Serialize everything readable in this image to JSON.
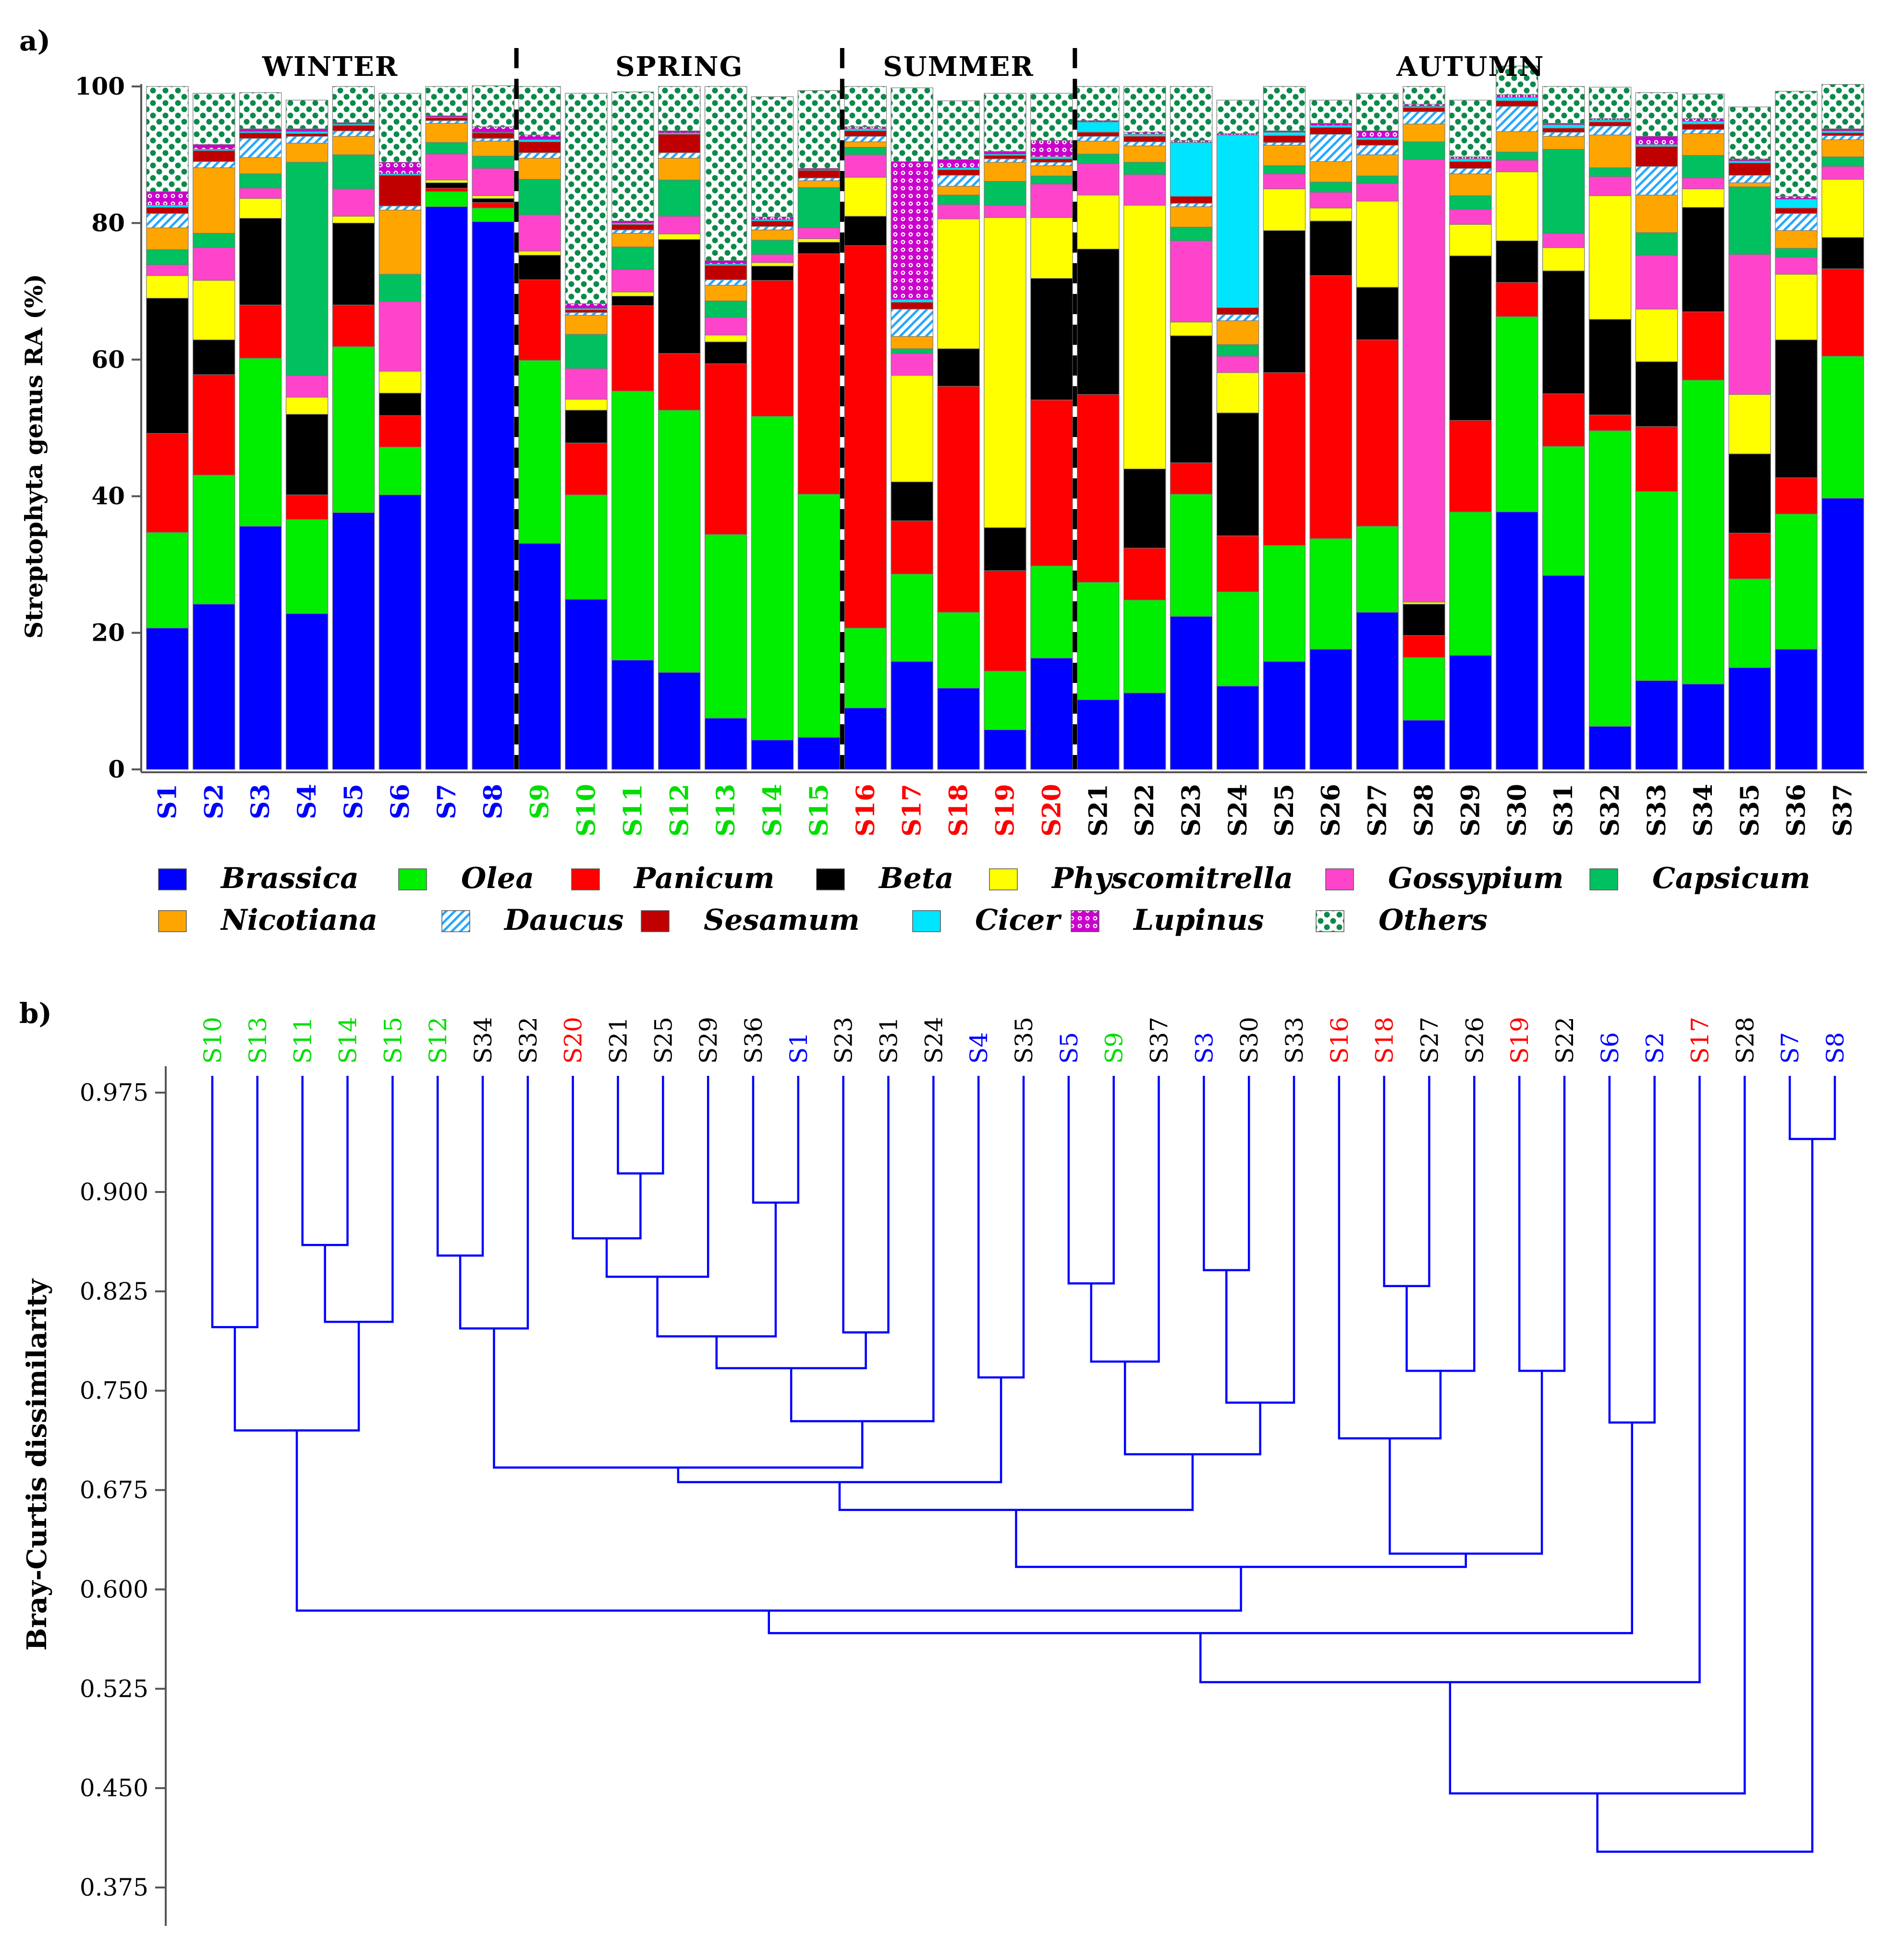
{
  "figure": {
    "panel_a_label": "a)",
    "panel_b_label": "b)"
  },
  "chart_data": [
    {
      "type": "bar",
      "stacked": true,
      "ylabel": "Streptophyta genus RA (%)",
      "ylim": [
        0,
        100
      ],
      "yticks": [
        0,
        20,
        40,
        60,
        80,
        100
      ],
      "seasons": [
        {
          "name": "WINTER",
          "samples": [
            "S1",
            "S2",
            "S3",
            "S4",
            "S5",
            "S6",
            "S7",
            "S8"
          ],
          "color": "#0000ff"
        },
        {
          "name": "SPRING",
          "samples": [
            "S9",
            "S10",
            "S11",
            "S12",
            "S13",
            "S14",
            "S15"
          ],
          "color": "#00dd00"
        },
        {
          "name": "SUMMER",
          "samples": [
            "S16",
            "S17",
            "S18",
            "S19",
            "S20"
          ],
          "color": "#ff0000"
        },
        {
          "name": "AUTUMN",
          "samples": [
            "S21",
            "S22",
            "S23",
            "S24",
            "S25",
            "S26",
            "S27",
            "S28",
            "S29",
            "S30",
            "S31",
            "S32",
            "S33",
            "S34",
            "S35",
            "S36",
            "S37"
          ],
          "color": "#000000"
        }
      ],
      "categories": [
        "S1",
        "S2",
        "S3",
        "S4",
        "S5",
        "S6",
        "S7",
        "S8",
        "S9",
        "S10",
        "S11",
        "S12",
        "S13",
        "S14",
        "S15",
        "S16",
        "S17",
        "S18",
        "S19",
        "S20",
        "S21",
        "S22",
        "S23",
        "S24",
        "S25",
        "S26",
        "S27",
        "S28",
        "S29",
        "S30",
        "S31",
        "S32",
        "S33",
        "S34",
        "S35",
        "S36",
        "S37"
      ],
      "series": [
        {
          "name": "Brassica",
          "color": "#0000ff",
          "pattern": "solid",
          "values": [
            20.7,
            24.2,
            35.6,
            22.8,
            37.6,
            40.2,
            82.4,
            80.2,
            33.1,
            24.9,
            16.0,
            14.2,
            7.5,
            4.3,
            4.7,
            9.0,
            15.8,
            11.9,
            5.8,
            16.3,
            10.2,
            11.2,
            22.4,
            12.2,
            15.8,
            17.6,
            23.0,
            7.2,
            16.7,
            37.7,
            28.4,
            6.3,
            13.0,
            12.5,
            14.9,
            17.6,
            39.7
          ]
        },
        {
          "name": "Olea",
          "color": "#00ee00",
          "pattern": "solid",
          "values": [
            14.0,
            18.9,
            24.6,
            13.8,
            24.3,
            7.0,
            2.2,
            2.0,
            26.8,
            15.3,
            39.4,
            38.4,
            26.9,
            47.4,
            35.6,
            11.7,
            12.8,
            11.1,
            8.6,
            13.5,
            17.2,
            13.6,
            17.9,
            13.8,
            17.0,
            16.2,
            12.6,
            9.2,
            21.0,
            28.6,
            18.9,
            43.3,
            27.7,
            44.5,
            13.0,
            19.8,
            20.8
          ]
        },
        {
          "name": "Panicum",
          "color": "#ff0000",
          "pattern": "solid",
          "values": [
            14.5,
            14.7,
            7.8,
            3.6,
            6.1,
            4.6,
            0.5,
            0.8,
            11.8,
            7.6,
            12.5,
            8.3,
            25.0,
            19.9,
            35.2,
            56.0,
            7.8,
            33.1,
            14.7,
            24.3,
            27.5,
            7.6,
            4.6,
            8.2,
            25.3,
            38.5,
            27.3,
            3.2,
            13.4,
            5.0,
            7.7,
            2.3,
            9.5,
            10.0,
            6.7,
            5.3,
            12.8
          ]
        },
        {
          "name": "Beta",
          "color": "#000000",
          "pattern": "solid",
          "values": [
            19.8,
            5.1,
            12.7,
            11.8,
            12.0,
            3.3,
            0.8,
            0.6,
            3.6,
            4.8,
            1.4,
            16.7,
            3.2,
            2.1,
            1.7,
            4.3,
            5.7,
            5.5,
            6.3,
            17.8,
            21.3,
            11.6,
            18.6,
            18.0,
            20.8,
            8.0,
            7.7,
            4.6,
            24.1,
            6.1,
            18.0,
            14.0,
            9.5,
            15.3,
            11.6,
            20.2,
            4.6
          ]
        },
        {
          "name": "Physcomitrella",
          "color": "#ffff00",
          "pattern": "solid",
          "values": [
            3.3,
            8.7,
            2.9,
            2.5,
            1.0,
            3.2,
            0.4,
            0.4,
            0.6,
            1.6,
            0.6,
            0.8,
            1.0,
            0.5,
            0.5,
            5.7,
            15.6,
            19.0,
            45.4,
            8.9,
            7.9,
            38.6,
            2.0,
            5.9,
            6.1,
            1.9,
            12.6,
            0.3,
            4.6,
            10.1,
            3.4,
            18.1,
            7.7,
            2.7,
            8.7,
            9.6,
            8.5
          ]
        },
        {
          "name": "Gossypium",
          "color": "#ff44cc",
          "pattern": "solid",
          "values": [
            1.6,
            4.8,
            1.5,
            3.2,
            4.0,
            10.2,
            3.8,
            4.0,
            5.3,
            4.5,
            3.3,
            2.6,
            2.6,
            1.2,
            1.6,
            3.3,
            3.2,
            2.1,
            1.8,
            4.9,
            4.6,
            4.5,
            11.9,
            2.4,
            2.2,
            2.3,
            2.6,
            64.8,
            2.2,
            1.7,
            2.1,
            2.8,
            7.9,
            1.6,
            20.5,
            2.5,
            1.9
          ]
        },
        {
          "name": "Capsicum",
          "color": "#00c060",
          "pattern": "solid",
          "values": [
            2.2,
            2.1,
            2.1,
            31.2,
            5.0,
            4.0,
            1.7,
            1.8,
            5.2,
            5.0,
            3.3,
            5.3,
            2.4,
            2.1,
            5.9,
            1.1,
            0.7,
            1.4,
            3.5,
            1.2,
            1.4,
            1.8,
            2.0,
            1.7,
            1.2,
            1.5,
            1.1,
            2.6,
            2.0,
            1.2,
            12.3,
            1.3,
            3.3,
            3.3,
            9.9,
            1.3,
            1.4
          ]
        },
        {
          "name": "Nicotiana",
          "color": "#ffa500",
          "pattern": "solid",
          "values": [
            3.2,
            9.6,
            2.4,
            2.8,
            2.7,
            9.4,
            2.8,
            2.2,
            3.1,
            2.8,
            2.0,
            3.2,
            2.3,
            1.5,
            1.0,
            0.8,
            1.8,
            1.3,
            2.8,
            1.5,
            1.9,
            2.4,
            3.0,
            3.5,
            3.0,
            3.0,
            3.1,
            2.6,
            3.2,
            3.0,
            1.9,
            4.8,
            5.5,
            3.2,
            0.6,
            2.6,
            2.5
          ]
        },
        {
          "name": "Daucus",
          "color": "#29a8ff",
          "pattern": "hatch",
          "values": [
            2.1,
            0.9,
            2.8,
            1.0,
            0.8,
            0.6,
            0.4,
            0.4,
            0.8,
            0.4,
            0.5,
            0.8,
            0.8,
            0.5,
            0.4,
            0.8,
            4.0,
            1.6,
            0.5,
            0.5,
            0.7,
            0.6,
            0.5,
            0.9,
            0.4,
            4.0,
            1.4,
            1.8,
            0.8,
            3.7,
            0.6,
            1.3,
            4.2,
            0.6,
            1.1,
            2.5,
            0.6
          ]
        },
        {
          "name": "Sesamum",
          "color": "#c00000",
          "pattern": "solid",
          "values": [
            0.9,
            1.6,
            0.8,
            0.4,
            0.8,
            4.5,
            0.4,
            0.8,
            1.6,
            0.4,
            0.8,
            2.7,
            2.1,
            0.8,
            1.1,
            0.8,
            1.0,
            0.8,
            0.5,
            0.5,
            0.6,
            0.8,
            1.0,
            1.0,
            1.0,
            1.0,
            0.8,
            0.6,
            1.0,
            0.8,
            0.6,
            0.6,
            2.9,
            0.8,
            1.8,
            0.8,
            0.4
          ]
        },
        {
          "name": "Cicer",
          "color": "#00e5ff",
          "pattern": "solid",
          "values": [
            0.3,
            0.2,
            0.2,
            0.3,
            0.2,
            0.2,
            0.1,
            0.1,
            0.3,
            0.2,
            0.2,
            0.2,
            0.2,
            0.2,
            0.1,
            0.3,
            0.4,
            0.3,
            0.2,
            0.3,
            1.5,
            0.3,
            7.9,
            25.3,
            0.5,
            0.3,
            0.3,
            0.2,
            0.4,
            0.5,
            0.5,
            0.3,
            0.3,
            0.4,
            0.3,
            1.3,
            0.3
          ]
        },
        {
          "name": "Lupinus",
          "color": "#cc00cc",
          "pattern": "circles",
          "values": [
            2.0,
            0.7,
            0.4,
            0.4,
            0.2,
            1.7,
            0.2,
            0.8,
            0.7,
            0.7,
            0.3,
            0.3,
            0.5,
            0.4,
            0.2,
            0.3,
            20.2,
            1.2,
            0.4,
            2.4,
            0.2,
            0.3,
            0.3,
            0.2,
            0.2,
            0.3,
            1.0,
            0.3,
            0.3,
            0.4,
            0.2,
            0.2,
            1.2,
            0.4,
            0.3,
            0.4,
            0.3
          ]
        },
        {
          "name": "Others",
          "color": "#0b8a4a",
          "pattern": "dots",
          "values": [
            15.4,
            7.5,
            5.3,
            4.2,
            5.3,
            10.1,
            4.3,
            6.0,
            7.1,
            30.8,
            18.9,
            6.5,
            25.5,
            17.6,
            11.4,
            5.9,
            10.8,
            8.6,
            8.5,
            6.9,
            5.0,
            6.7,
            7.9,
            4.9,
            6.5,
            3.4,
            5.5,
            2.6,
            8.3,
            4.2,
            5.4,
            4.6,
            6.4,
            3.6,
            7.6,
            15.4,
            6.5
          ]
        }
      ],
      "legend": {
        "position": "bottom"
      }
    },
    {
      "type": "dendrogram",
      "ylabel": "Bray-Curtis dissimilarity",
      "ylim": [
        0.35,
        1.0
      ],
      "yticks": [
        "0.975",
        "0.900",
        "0.825",
        "0.750",
        "0.675",
        "0.600",
        "0.525",
        "0.450",
        "0.375"
      ],
      "leaves": [
        {
          "label": "S10",
          "season": "SPRING"
        },
        {
          "label": "S13",
          "season": "SPRING"
        },
        {
          "label": "S11",
          "season": "SPRING"
        },
        {
          "label": "S14",
          "season": "SPRING"
        },
        {
          "label": "S15",
          "season": "SPRING"
        },
        {
          "label": "S12",
          "season": "SPRING"
        },
        {
          "label": "S34",
          "season": "AUTUMN"
        },
        {
          "label": "S32",
          "season": "AUTUMN"
        },
        {
          "label": "S20",
          "season": "SUMMER"
        },
        {
          "label": "S21",
          "season": "AUTUMN"
        },
        {
          "label": "S25",
          "season": "AUTUMN"
        },
        {
          "label": "S29",
          "season": "AUTUMN"
        },
        {
          "label": "S36",
          "season": "AUTUMN"
        },
        {
          "label": "S1",
          "season": "WINTER"
        },
        {
          "label": "S23",
          "season": "AUTUMN"
        },
        {
          "label": "S31",
          "season": "AUTUMN"
        },
        {
          "label": "S24",
          "season": "AUTUMN"
        },
        {
          "label": "S4",
          "season": "WINTER"
        },
        {
          "label": "S35",
          "season": "AUTUMN"
        },
        {
          "label": "S5",
          "season": "WINTER"
        },
        {
          "label": "S9",
          "season": "SPRING"
        },
        {
          "label": "S37",
          "season": "AUTUMN"
        },
        {
          "label": "S3",
          "season": "WINTER"
        },
        {
          "label": "S30",
          "season": "AUTUMN"
        },
        {
          "label": "S33",
          "season": "AUTUMN"
        },
        {
          "label": "S16",
          "season": "SUMMER"
        },
        {
          "label": "S18",
          "season": "SUMMER"
        },
        {
          "label": "S27",
          "season": "AUTUMN"
        },
        {
          "label": "S26",
          "season": "AUTUMN"
        },
        {
          "label": "S19",
          "season": "SUMMER"
        },
        {
          "label": "S22",
          "season": "AUTUMN"
        },
        {
          "label": "S6",
          "season": "WINTER"
        },
        {
          "label": "S2",
          "season": "WINTER"
        },
        {
          "label": "S17",
          "season": "SUMMER"
        },
        {
          "label": "S28",
          "season": "AUTUMN"
        },
        {
          "label": "S7",
          "season": "WINTER"
        },
        {
          "label": "S8",
          "season": "WINTER"
        }
      ],
      "merges": [
        {
          "id": "n1",
          "a": "S10",
          "b": "S13",
          "h": 0.798
        },
        {
          "id": "n2",
          "a": "S11",
          "b": "S14",
          "h": 0.86
        },
        {
          "id": "n3",
          "a": "n2",
          "b": "S15",
          "h": 0.802
        },
        {
          "id": "n4",
          "a": "n1",
          "b": "n3",
          "h": 0.72
        },
        {
          "id": "n5",
          "a": "S12",
          "b": "S34",
          "h": 0.852
        },
        {
          "id": "n6",
          "a": "n5",
          "b": "S32",
          "h": 0.797
        },
        {
          "id": "n7",
          "a": "S21",
          "b": "S25",
          "h": 0.914
        },
        {
          "id": "n8",
          "a": "S20",
          "b": "n7",
          "h": 0.865
        },
        {
          "id": "n9",
          "a": "n8",
          "b": "S29",
          "h": 0.836
        },
        {
          "id": "n10",
          "a": "S36",
          "b": "S1",
          "h": 0.892
        },
        {
          "id": "n11",
          "a": "n9",
          "b": "n10",
          "h": 0.791
        },
        {
          "id": "n12",
          "a": "S23",
          "b": "S31",
          "h": 0.794
        },
        {
          "id": "n13",
          "a": "n11",
          "b": "n12",
          "h": 0.767
        },
        {
          "id": "n14",
          "a": "n13",
          "b": "S24",
          "h": 0.727
        },
        {
          "id": "n15",
          "a": "n6",
          "b": "n14",
          "h": 0.692
        },
        {
          "id": "n16",
          "a": "S4",
          "b": "S35",
          "h": 0.76
        },
        {
          "id": "n17",
          "a": "n15",
          "b": "n16",
          "h": 0.681
        },
        {
          "id": "n18",
          "a": "S5",
          "b": "S9",
          "h": 0.831
        },
        {
          "id": "n19",
          "a": "n18",
          "b": "S37",
          "h": 0.772
        },
        {
          "id": "n20",
          "a": "S3",
          "b": "S30",
          "h": 0.841
        },
        {
          "id": "n21",
          "a": "n20",
          "b": "S33",
          "h": 0.741
        },
        {
          "id": "n22",
          "a": "n19",
          "b": "n21",
          "h": 0.702
        },
        {
          "id": "n23",
          "a": "n17",
          "b": "n22",
          "h": 0.66
        },
        {
          "id": "n24",
          "a": "S18",
          "b": "S27",
          "h": 0.829
        },
        {
          "id": "n25",
          "a": "n24",
          "b": "S26",
          "h": 0.765
        },
        {
          "id": "n26",
          "a": "S16",
          "b": "n25",
          "h": 0.714
        },
        {
          "id": "n27",
          "a": "S19",
          "b": "S22",
          "h": 0.765
        },
        {
          "id": "n28",
          "a": "n26",
          "b": "n27",
          "h": 0.627
        },
        {
          "id": "n29",
          "a": "n23",
          "b": "n28",
          "h": 0.617
        },
        {
          "id": "n30",
          "a": "n4",
          "b": "n29",
          "h": 0.584
        },
        {
          "id": "n31",
          "a": "S6",
          "b": "S2",
          "h": 0.726
        },
        {
          "id": "n32",
          "a": "n30",
          "b": "n31",
          "h": 0.567
        },
        {
          "id": "n33",
          "a": "n32",
          "b": "S17",
          "h": 0.53
        },
        {
          "id": "n34",
          "a": "n33",
          "b": "S28",
          "h": 0.446
        },
        {
          "id": "n35",
          "a": "S7",
          "b": "S8",
          "h": 0.94
        },
        {
          "id": "n36",
          "a": "n34",
          "b": "n35",
          "h": 0.402
        }
      ]
    }
  ]
}
